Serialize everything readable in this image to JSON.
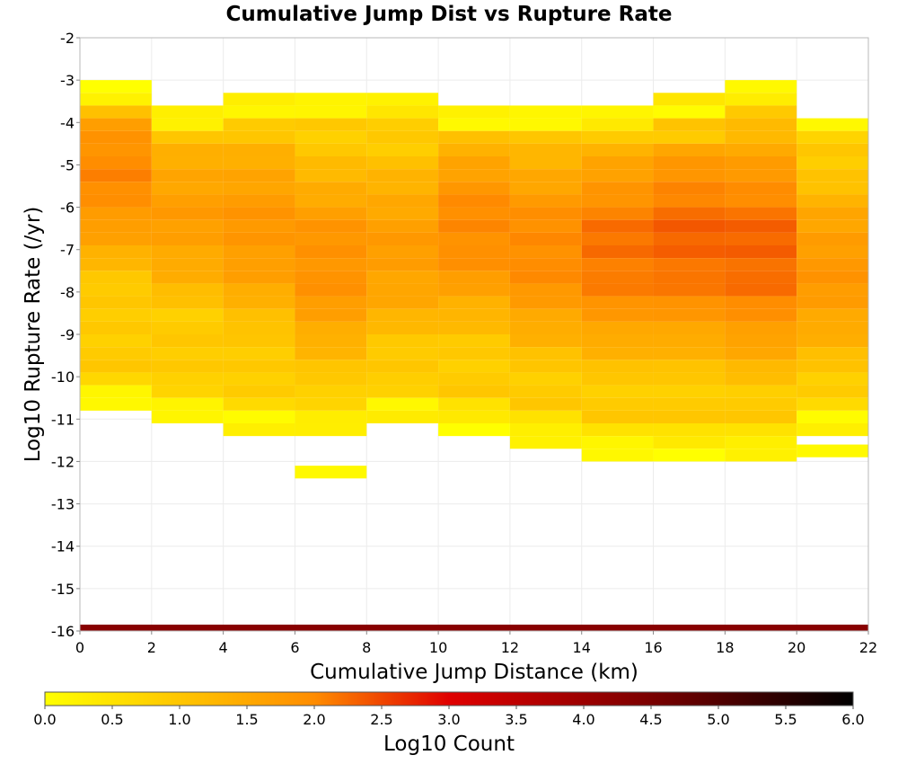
{
  "chart_data": {
    "type": "heatmap",
    "title": "Cumulative Jump Dist vs Rupture Rate",
    "xlabel": "Cumulative Jump Distance (km)",
    "ylabel": "Log10 Rupture Rate (/yr)",
    "xlim": [
      0,
      22
    ],
    "ylim": [
      -16,
      -2
    ],
    "x_ticks": [
      "0",
      "2",
      "4",
      "6",
      "8",
      "10",
      "12",
      "14",
      "16",
      "18",
      "20",
      "22"
    ],
    "y_ticks": [
      "-2",
      "-3",
      "-4",
      "-5",
      "-6",
      "-7",
      "-8",
      "-9",
      "-10",
      "-11",
      "-12",
      "-13",
      "-14",
      "-15",
      "-16"
    ],
    "x_bin_width": 2,
    "y_bin_height": 0.3,
    "grid": true,
    "colorbar": {
      "label": "Log10 Count",
      "range": [
        0.0,
        6.0
      ],
      "ticks": [
        "0.0",
        "0.5",
        "1.0",
        "1.5",
        "2.0",
        "2.5",
        "3.0",
        "3.5",
        "4.0",
        "4.5",
        "5.0",
        "5.5",
        "6.0"
      ],
      "stops": [
        {
          "value": 0.0,
          "color": "#ffff00"
        },
        {
          "value": 2.0,
          "color": "#ff8c00"
        },
        {
          "value": 3.0,
          "color": "#e00000"
        },
        {
          "value": 4.5,
          "color": "#7a0000"
        },
        {
          "value": 6.0,
          "color": "#000000"
        }
      ]
    },
    "columns": [
      {
        "x0": 0,
        "y_top": -3.0,
        "y_bottom": -10.7,
        "peak": 2.0,
        "peak_at": -5.2
      },
      {
        "x0": 2,
        "y_top": -3.6,
        "y_bottom": -11.0,
        "peak": 1.7,
        "peak_at": -6.2
      },
      {
        "x0": 4,
        "y_top": -3.3,
        "y_bottom": -11.3,
        "peak": 1.8,
        "peak_at": -6.5
      },
      {
        "x0": 6,
        "y_top": -3.3,
        "y_bottom": -11.3,
        "peak": 1.9,
        "peak_at": -7.3
      },
      {
        "x0": 8,
        "y_top": -3.3,
        "y_bottom": -11.0,
        "peak": 1.7,
        "peak_at": -7.0
      },
      {
        "x0": 10,
        "y_top": -3.6,
        "y_bottom": -11.3,
        "peak": 2.0,
        "peak_at": -6.5
      },
      {
        "x0": 12,
        "y_top": -3.6,
        "y_bottom": -11.6,
        "peak": 2.0,
        "peak_at": -7.0
      },
      {
        "x0": 14,
        "y_top": -3.6,
        "y_bottom": -11.9,
        "peak": 2.2,
        "peak_at": -7.0
      },
      {
        "x0": 16,
        "y_top": -3.3,
        "y_bottom": -11.9,
        "peak": 2.3,
        "peak_at": -6.8
      },
      {
        "x0": 18,
        "y_top": -3.0,
        "y_bottom": -11.9,
        "peak": 2.3,
        "peak_at": -7.0
      },
      {
        "x0": 20,
        "y_top": -3.9,
        "y_bottom": -11.3,
        "peak": 1.8,
        "peak_at": -7.5
      }
    ],
    "extra_cells": [
      {
        "x0": 6,
        "x1": 8,
        "y0": -12.4,
        "y1": -12.1,
        "value": 0.1
      },
      {
        "x0": 20,
        "x1": 22,
        "y0": -11.9,
        "y1": -11.6,
        "value": 0.1
      }
    ],
    "baseline_row": {
      "x0": 0,
      "x1": 22,
      "y0": -16.0,
      "y1": -15.85,
      "value": 4.3
    }
  }
}
